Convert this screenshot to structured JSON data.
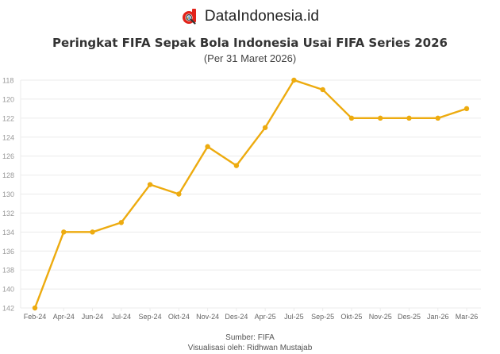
{
  "brand": {
    "name": "DataIndonesia.id",
    "logo_icon": "magnifier-d-logo-icon",
    "logo_color": "#e2231a"
  },
  "header": {
    "title": "Peringkat FIFA Sepak Bola Indonesia Usai FIFA Series 2026",
    "subtitle": "(Per 31 Maret 2026)"
  },
  "footer": {
    "source": "Sumber: FIFA",
    "credit": "Visualisasi oleh: Ridhwan Mustajab"
  },
  "colors": {
    "line": "#edab0f",
    "grid": "#ebebeb",
    "tick_text": "#999999"
  },
  "chart_data": {
    "type": "line",
    "title": "Peringkat FIFA Sepak Bola Indonesia Usai FIFA Series 2026",
    "subtitle": "(Per 31 Maret 2026)",
    "xlabel": "",
    "ylabel": "",
    "categories": [
      "Feb-24",
      "Apr-24",
      "Jun-24",
      "Jul-24",
      "Sep-24",
      "Okt-24",
      "Nov-24",
      "Des-24",
      "Apr-25",
      "Jul-25",
      "Sep-25",
      "Okt-25",
      "Nov-25",
      "Des-25",
      "Jan-26",
      "Mar-26"
    ],
    "series": [
      {
        "name": "Peringkat FIFA",
        "values": [
          142,
          134,
          134,
          133,
          129,
          130,
          125,
          127,
          123,
          118,
          119,
          122,
          122,
          122,
          122,
          121
        ]
      }
    ],
    "ylim": [
      142,
      118
    ],
    "y_reversed": true,
    "yticks": [
      118,
      120,
      122,
      124,
      126,
      128,
      130,
      132,
      134,
      136,
      138,
      140,
      142
    ],
    "grid": true,
    "legend": "none"
  }
}
